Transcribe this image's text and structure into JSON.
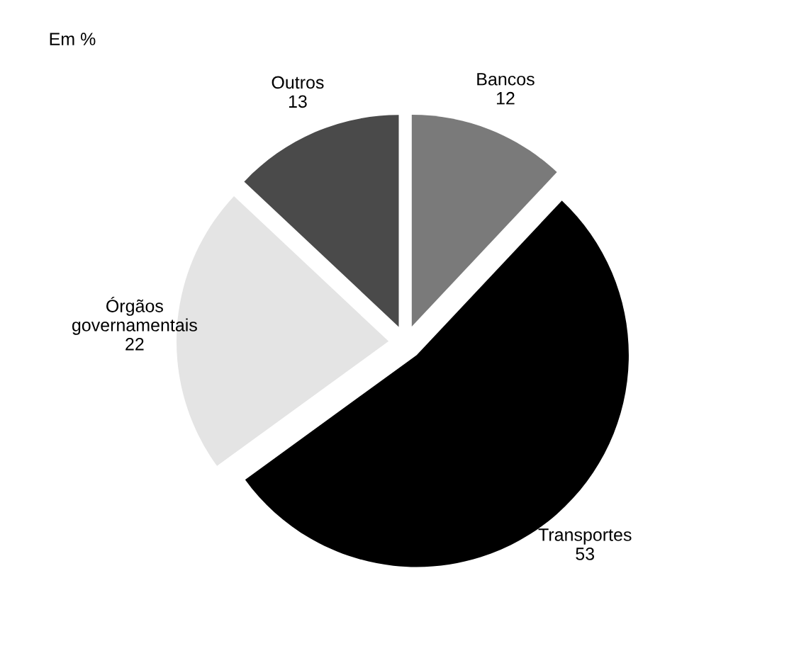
{
  "chart_data": {
    "type": "pie",
    "title": "Em %",
    "categories": [
      "Bancos",
      "Transportes",
      "Órgãos\ngovernamentais",
      "Outros"
    ],
    "values": [
      12,
      53,
      22,
      13
    ],
    "colors": [
      "#7a7a7a",
      "#000000",
      "#e4e4e4",
      "#4a4a4a"
    ],
    "data_labels": true
  }
}
